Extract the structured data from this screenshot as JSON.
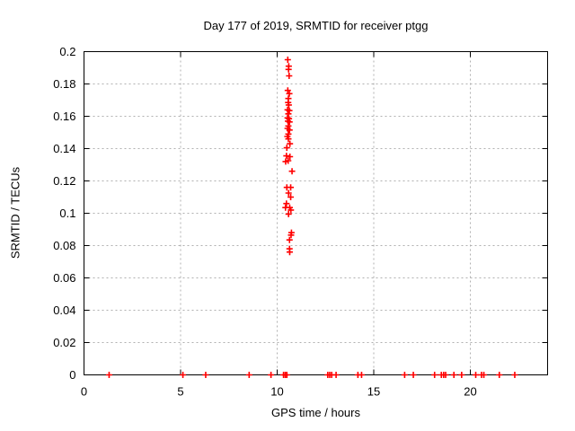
{
  "title": "Day 177 of 2019, SRMTID for receiver ptgg",
  "colors": {
    "marker": "#ff0000",
    "grid": "#b0b0b0",
    "frame": "#000000",
    "background": "#ffffff",
    "text": "#000000"
  },
  "chart_data": {
    "type": "scatter",
    "title": "Day 177 of 2019, SRMTID for receiver ptgg",
    "xlabel": "GPS time / hours",
    "ylabel": "SRMTID / TECUs",
    "xlim": [
      0,
      24
    ],
    "ylim": [
      0,
      0.2
    ],
    "x_tick_values": [
      0,
      5,
      10,
      15,
      20
    ],
    "x_tick_labels": [
      "0",
      "5",
      "10",
      "15",
      "20"
    ],
    "y_tick_values": [
      0,
      0.02,
      0.04,
      0.06,
      0.08,
      0.1,
      0.12,
      0.14,
      0.16,
      0.18,
      0.2
    ],
    "y_tick_labels": [
      "0",
      "0.02",
      "0.04",
      "0.06",
      "0.08",
      "0.1",
      "0.12",
      "0.14",
      "0.16",
      "0.18",
      "0.2"
    ],
    "grid": true,
    "legend": "none",
    "marker": "plus",
    "marker_color": "#ff0000",
    "series": [
      {
        "name": "SRMTID",
        "points": [
          [
            10.55,
            0.195
          ],
          [
            10.6,
            0.191
          ],
          [
            10.59,
            0.189
          ],
          [
            10.62,
            0.185
          ],
          [
            10.55,
            0.176
          ],
          [
            10.63,
            0.174
          ],
          [
            10.58,
            0.171
          ],
          [
            10.57,
            0.1685
          ],
          [
            10.6,
            0.167
          ],
          [
            10.54,
            0.164
          ],
          [
            10.63,
            0.1635
          ],
          [
            10.58,
            0.1615
          ],
          [
            10.54,
            0.159
          ],
          [
            10.61,
            0.1585
          ],
          [
            10.56,
            0.157
          ],
          [
            10.64,
            0.1565
          ],
          [
            10.58,
            0.154
          ],
          [
            10.54,
            0.1525
          ],
          [
            10.64,
            0.1515
          ],
          [
            10.58,
            0.149
          ],
          [
            10.53,
            0.1475
          ],
          [
            10.58,
            0.146
          ],
          [
            10.66,
            0.143
          ],
          [
            10.5,
            0.1405
          ],
          [
            10.48,
            0.1355
          ],
          [
            10.66,
            0.135
          ],
          [
            10.44,
            0.132
          ],
          [
            10.57,
            0.1325
          ],
          [
            10.77,
            0.126
          ],
          [
            10.5,
            0.116
          ],
          [
            10.7,
            0.116
          ],
          [
            10.59,
            0.1125
          ],
          [
            10.7,
            0.11
          ],
          [
            10.48,
            0.106
          ],
          [
            10.43,
            0.1035
          ],
          [
            10.65,
            0.1035
          ],
          [
            10.71,
            0.102
          ],
          [
            10.59,
            0.0995
          ],
          [
            10.74,
            0.088
          ],
          [
            10.72,
            0.0865
          ],
          [
            10.64,
            0.0835
          ],
          [
            10.64,
            0.078
          ],
          [
            10.65,
            0.076
          ],
          [
            1.3,
            0
          ],
          [
            5.12,
            0
          ],
          [
            6.3,
            0
          ],
          [
            8.55,
            0
          ],
          [
            9.68,
            0
          ],
          [
            10.33,
            0
          ],
          [
            10.42,
            0
          ],
          [
            10.5,
            0
          ],
          [
            12.62,
            0
          ],
          [
            12.72,
            0
          ],
          [
            12.82,
            0
          ],
          [
            13.05,
            0
          ],
          [
            14.18,
            0
          ],
          [
            14.37,
            0
          ],
          [
            16.6,
            0
          ],
          [
            17.05,
            0
          ],
          [
            18.15,
            0
          ],
          [
            18.5,
            0
          ],
          [
            18.62,
            0
          ],
          [
            18.72,
            0
          ],
          [
            19.15,
            0
          ],
          [
            19.55,
            0
          ],
          [
            20.28,
            0
          ],
          [
            20.58,
            0
          ],
          [
            20.7,
            0
          ],
          [
            21.5,
            0
          ],
          [
            22.3,
            0
          ]
        ]
      }
    ]
  }
}
